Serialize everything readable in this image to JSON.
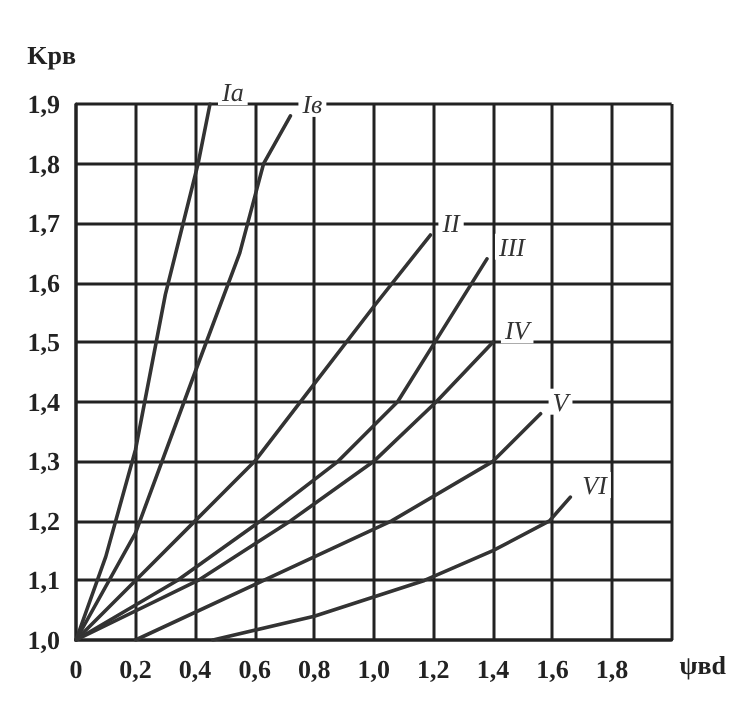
{
  "chart_data": {
    "type": "line",
    "xlabel": "ψвd",
    "ylabel": "Kрв",
    "xlim": [
      0,
      2.0
    ],
    "ylim": [
      1.0,
      1.9
    ],
    "xticks": [
      0,
      {
        "value": 0.2,
        "label": "0,2"
      },
      {
        "value": 0.4,
        "label": "0,4"
      },
      {
        "value": 0.6,
        "label": "0,6"
      },
      {
        "value": 0.8,
        "label": "0,8"
      },
      {
        "value": 1.0,
        "label": "1,0"
      },
      {
        "value": 1.2,
        "label": "1,2"
      },
      {
        "value": 1.4,
        "label": "1,4"
      },
      {
        "value": 1.6,
        "label": "1,6"
      },
      {
        "value": 1.8,
        "label": "1,8"
      },
      {
        "value": 2.0,
        "label": null
      }
    ],
    "yticks": [
      {
        "value": 1.0,
        "label": "1,0"
      },
      {
        "value": 1.1,
        "label": "1,1"
      },
      {
        "value": 1.2,
        "label": "1,2"
      },
      {
        "value": 1.3,
        "label": "1,3"
      },
      {
        "value": 1.4,
        "label": "1,4"
      },
      {
        "value": 1.5,
        "label": "1,5"
      },
      {
        "value": 1.6,
        "label": "1,6"
      },
      {
        "value": 1.7,
        "label": "1,7"
      },
      {
        "value": 1.8,
        "label": "1,8"
      },
      {
        "value": 1.9,
        "label": "1,9"
      }
    ],
    "grid": true,
    "legend": false,
    "marker": "none",
    "line_style": "solid",
    "series": [
      {
        "name": "Iа",
        "color": "#333333",
        "x": [
          0,
          0.1,
          0.2,
          0.3,
          0.41,
          0.45
        ],
        "values": [
          1.0,
          1.14,
          1.32,
          1.58,
          1.8,
          1.9
        ]
      },
      {
        "name": "Iв",
        "color": "#333333",
        "x": [
          0,
          0.2,
          0.4,
          0.55,
          0.63,
          0.72
        ],
        "values": [
          1.0,
          1.18,
          1.45,
          1.65,
          1.8,
          1.88
        ]
      },
      {
        "name": "II",
        "color": "#333333",
        "x": [
          0,
          0.2,
          0.4,
          0.6,
          0.8,
          1.0,
          1.19
        ],
        "values": [
          1.0,
          1.1,
          1.2,
          1.3,
          1.43,
          1.56,
          1.68
        ]
      },
      {
        "name": "III",
        "color": "#333333",
        "x": [
          0,
          0.34,
          0.62,
          0.88,
          1.08,
          1.18,
          1.38
        ],
        "values": [
          1.0,
          1.1,
          1.2,
          1.3,
          1.4,
          1.48,
          1.64
        ]
      },
      {
        "name": "IV",
        "color": "#333333",
        "x": [
          0,
          0.41,
          0.72,
          1.0,
          1.21,
          1.4
        ],
        "values": [
          1.0,
          1.1,
          1.2,
          1.3,
          1.4,
          1.5
        ]
      },
      {
        "name": "V",
        "color": "#333333",
        "x": [
          0.2,
          0.63,
          1.06,
          1.4,
          1.56
        ],
        "values": [
          1.0,
          1.1,
          1.2,
          1.3,
          1.38
        ]
      },
      {
        "name": "VI",
        "color": "#333333",
        "x": [
          0.46,
          0.8,
          1.17,
          1.4,
          1.59,
          1.66
        ],
        "values": [
          1.0,
          1.04,
          1.1,
          1.15,
          1.2,
          1.24
        ]
      }
    ]
  }
}
